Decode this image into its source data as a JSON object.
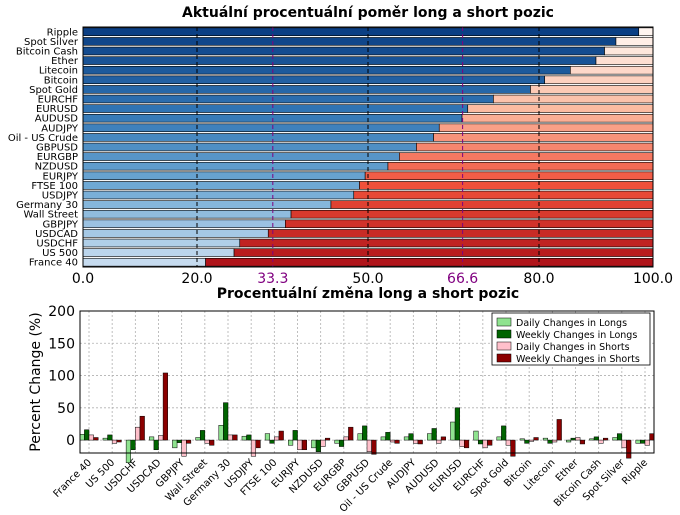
{
  "colors": {
    "long_scale": [
      "#0b3f84",
      "#2f74b4",
      "#6fa9d4",
      "#c6dbef"
    ],
    "short_scale": [
      "#fff5f0",
      "#fcbba1",
      "#f0503a",
      "#b0141a"
    ],
    "daily_longs": "#8fe38f",
    "weekly_longs": "#006400",
    "daily_shorts": "#ffc0cb",
    "weekly_shorts": "#8b0000"
  },
  "chart_data": [
    {
      "type": "bar",
      "orientation": "horizontal-stacked",
      "title": "Aktuální procentuální poměr long a short pozic",
      "categories": [
        "Ripple",
        "Spot Silver",
        "Bitcoin Cash",
        "Ether",
        "Litecoin",
        "Bitcoin",
        "Spot Gold",
        "EURCHF",
        "EURUSD",
        "AUDUSD",
        "AUDJPY",
        "Oil - US Crude",
        "GBPUSD",
        "EURGBP",
        "NZDUSD",
        "EURJPY",
        "FTSE 100",
        "USDJPY",
        "Germany 30",
        "Wall Street",
        "GBPJPY",
        "USDCAD",
        "USDCHF",
        "US 500",
        "France 40"
      ],
      "long_percent": [
        97.5,
        93.5,
        91.5,
        90.0,
        85.5,
        81.0,
        78.5,
        72.0,
        67.5,
        66.5,
        62.5,
        61.5,
        58.5,
        55.5,
        53.5,
        49.5,
        48.5,
        47.5,
        43.5,
        36.5,
        35.5,
        32.5,
        27.5,
        26.5,
        21.5
      ],
      "xlim": [
        0,
        100
      ],
      "xticks": [
        "0.0",
        "20.0",
        "33.3",
        "50.0",
        "66.6",
        "80.0",
        "100.0"
      ],
      "highlighted_ticks": [
        "33.3",
        "66.6"
      ],
      "grid": true
    },
    {
      "type": "bar",
      "orientation": "vertical-grouped",
      "title": "Procentuální změna long a short pozic",
      "ylabel": "Percent Change (%)",
      "ylim": [
        -20,
        200
      ],
      "yticks": [
        "0",
        "50",
        "100",
        "150",
        "200"
      ],
      "legend_position": "top-right",
      "categories": [
        "France 40",
        "US 500",
        "USDCHF",
        "USDCAD",
        "GBPJPY",
        "Wall Street",
        "Germany 30",
        "USDJPY",
        "FTSE 100",
        "EURJPY",
        "NZDUSD",
        "EURGBP",
        "GBPUSD",
        "Oil - US Crude",
        "AUDJPY",
        "AUDUSD",
        "EURUSD",
        "EURCHF",
        "Spot Gold",
        "Bitcoin",
        "Litecoin",
        "Ether",
        "Bitcoin Cash",
        "Spot Silver",
        "Ripple"
      ],
      "series": [
        {
          "name": "Daily Changes in Longs",
          "values": [
            9,
            3,
            -35,
            5,
            -12,
            4,
            23,
            6,
            10,
            -8,
            -12,
            -5,
            10,
            5,
            5,
            10,
            28,
            14,
            5,
            2,
            3,
            -3,
            2,
            4,
            -5
          ]
        },
        {
          "name": "Weekly Changes in Longs",
          "values": [
            16,
            8,
            -15,
            -15,
            -4,
            15,
            58,
            8,
            -5,
            15,
            -18,
            -10,
            22,
            12,
            10,
            18,
            50,
            -6,
            22,
            -5,
            -5,
            3,
            5,
            10,
            -5
          ]
        },
        {
          "name": "Daily Changes in Shorts",
          "values": [
            8,
            -5,
            20,
            7,
            -25,
            -5,
            8,
            -25,
            5,
            -15,
            -10,
            5,
            -18,
            -3,
            -5,
            -5,
            -10,
            -12,
            -8,
            -2,
            -3,
            4,
            -5,
            -12,
            -8
          ]
        },
        {
          "name": "Weekly Changes in Shorts",
          "values": [
            4,
            -3,
            37,
            104,
            -5,
            -8,
            8,
            -12,
            14,
            -15,
            3,
            20,
            -22,
            -5,
            -6,
            5,
            -12,
            -8,
            -25,
            4,
            32,
            -6,
            3,
            -28,
            10
          ]
        }
      ]
    }
  ]
}
